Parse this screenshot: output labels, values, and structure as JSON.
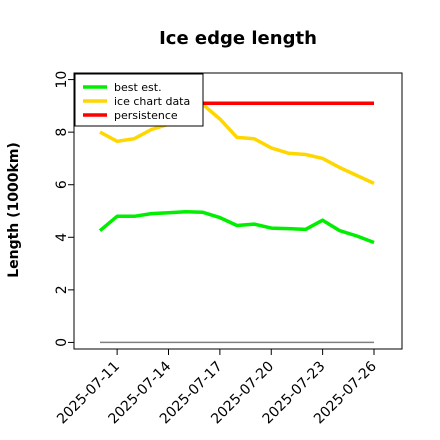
{
  "chart_data": {
    "type": "line",
    "title": "Ice edge length",
    "xlabel": "",
    "ylabel": "Length (1000km)",
    "ylim": [
      -0.25,
      10.25
    ],
    "yticks": [
      0,
      2,
      4,
      6,
      8,
      10
    ],
    "x": [
      "2025-07-10",
      "2025-07-11",
      "2025-07-12",
      "2025-07-13",
      "2025-07-14",
      "2025-07-15",
      "2025-07-16",
      "2025-07-17",
      "2025-07-18",
      "2025-07-19",
      "2025-07-20",
      "2025-07-21",
      "2025-07-22",
      "2025-07-23",
      "2025-07-24",
      "2025-07-25",
      "2025-07-26"
    ],
    "xticks": [
      "2025-07-11",
      "2025-07-14",
      "2025-07-17",
      "2025-07-20",
      "2025-07-23",
      "2025-07-26"
    ],
    "grid": false,
    "legend_position": "top-left",
    "series": [
      {
        "name": "best est.",
        "color": "#00ee00",
        "values": [
          4.25,
          4.8,
          4.8,
          4.9,
          4.93,
          4.97,
          4.95,
          4.75,
          4.45,
          4.5,
          4.35,
          4.33,
          4.3,
          4.65,
          4.25,
          4.05,
          3.8
        ]
      },
      {
        "name": "ice chart data",
        "color": "#ffd700",
        "values": [
          8.0,
          7.65,
          7.75,
          8.1,
          8.3,
          8.9,
          9.05,
          8.5,
          7.8,
          7.75,
          7.4,
          7.2,
          7.15,
          7.0,
          6.65,
          6.35,
          6.05
        ]
      },
      {
        "name": "persistence",
        "color": "#ff0000",
        "x_start": "2025-07-15",
        "values": [
          null,
          null,
          null,
          null,
          null,
          9.1,
          9.1,
          9.1,
          9.1,
          9.1,
          9.1,
          9.1,
          9.1,
          9.1,
          9.1,
          9.1,
          9.1
        ]
      }
    ],
    "reference_line": {
      "value": 0,
      "color": "#808080"
    }
  }
}
